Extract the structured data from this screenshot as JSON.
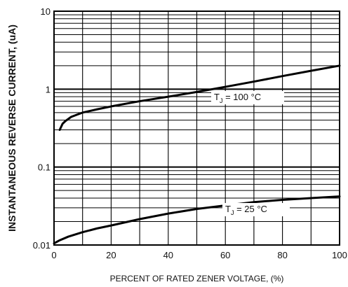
{
  "chart_data": {
    "type": "line",
    "xlabel": "PERCENT OF RATED ZENER VOLTAGE, (%)",
    "ylabel": "INSTANTANEOUS REVERSE CURRENT, (uA)",
    "xlim": [
      0,
      100
    ],
    "ylim": [
      0.01,
      10
    ],
    "yscale": "log",
    "grid": true,
    "x_ticks": [
      "0",
      "20",
      "40",
      "60",
      "80",
      "100"
    ],
    "y_ticks": [
      "0.01",
      "0.1",
      "1",
      "10"
    ],
    "series": [
      {
        "annotation_main": "T",
        "annotation_sub": "J",
        "annotation_rest": " = 100 °C",
        "x": [
          2,
          3,
          4,
          6,
          8,
          10,
          15,
          20,
          30,
          40,
          50,
          60,
          70,
          80,
          90,
          100
        ],
        "y": [
          0.3,
          0.36,
          0.39,
          0.44,
          0.47,
          0.5,
          0.55,
          0.6,
          0.7,
          0.8,
          0.92,
          1.07,
          1.25,
          1.47,
          1.72,
          2.0
        ]
      },
      {
        "annotation_main": "T",
        "annotation_sub": "J",
        "annotation_rest": " = 25 °C",
        "x": [
          0,
          2,
          5,
          10,
          15,
          20,
          30,
          40,
          50,
          60,
          70,
          80,
          90,
          100
        ],
        "y": [
          0.0105,
          0.0115,
          0.0128,
          0.0146,
          0.0163,
          0.0178,
          0.0215,
          0.0253,
          0.029,
          0.0322,
          0.0355,
          0.038,
          0.04,
          0.042
        ]
      }
    ]
  }
}
